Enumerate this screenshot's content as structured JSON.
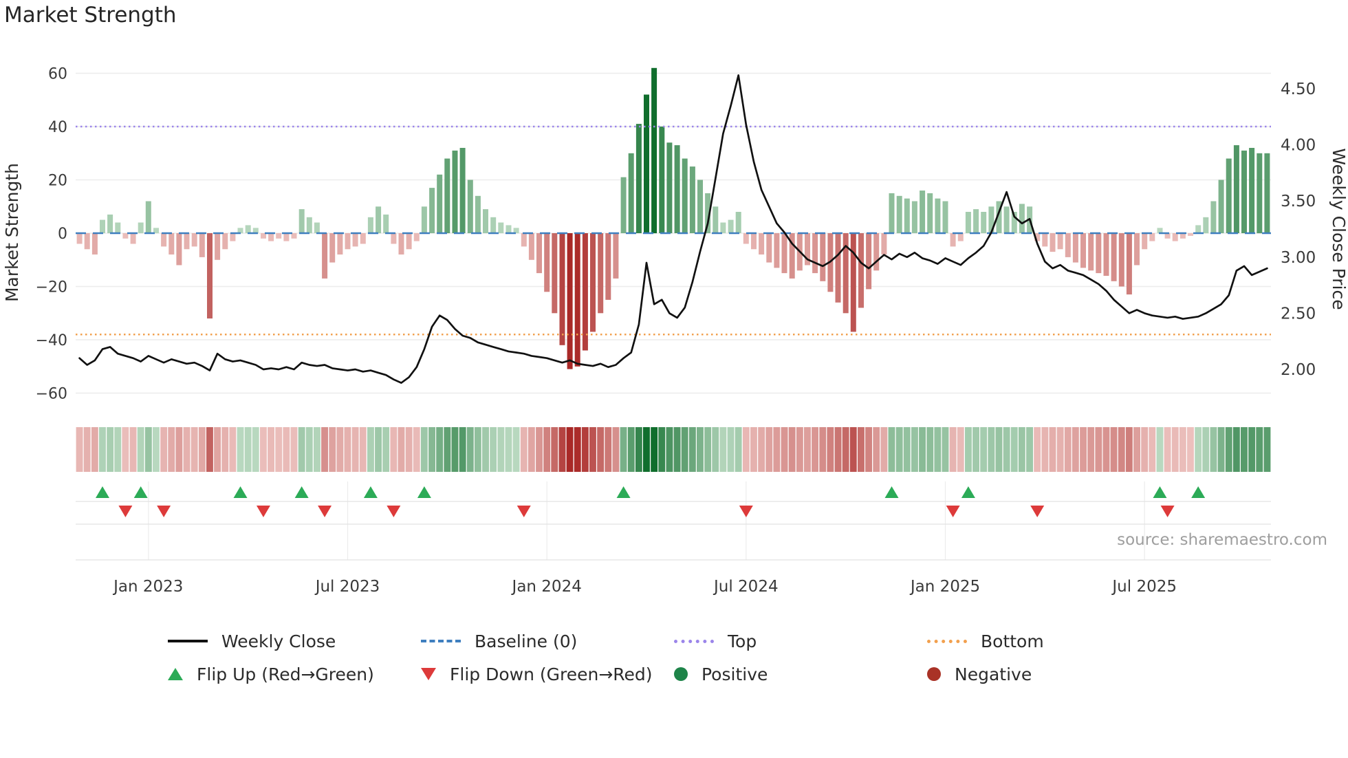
{
  "title": "Market Strength",
  "source": "source: sharemaestro.com",
  "axes": {
    "left_label": "Market Strength",
    "right_label": "Weekly Close Price",
    "left_ticks": [
      {
        "label": "60",
        "value": 60
      },
      {
        "label": "40",
        "value": 40
      },
      {
        "label": "20",
        "value": 20
      },
      {
        "label": "0",
        "value": 0
      },
      {
        "label": "−20",
        "value": -20
      },
      {
        "label": "−40",
        "value": -40
      },
      {
        "label": "−60",
        "value": -60
      }
    ],
    "right_ticks": [
      {
        "label": "4.50",
        "value": 4.5
      },
      {
        "label": "4.00",
        "value": 4.0
      },
      {
        "label": "3.50",
        "value": 3.5
      },
      {
        "label": "3.00",
        "value": 3.0
      },
      {
        "label": "2.50",
        "value": 2.5
      },
      {
        "label": "2.00",
        "value": 2.0
      }
    ],
    "x_ticks": [
      {
        "label": "Jan 2023",
        "index": 9
      },
      {
        "label": "Jul 2023",
        "index": 35
      },
      {
        "label": "Jan 2024",
        "index": 61
      },
      {
        "label": "Jul 2024",
        "index": 87
      },
      {
        "label": "Jan 2025",
        "index": 113
      },
      {
        "label": "Jul 2025",
        "index": 139
      }
    ]
  },
  "legend": {
    "row1": [
      {
        "name": "weekly-close",
        "label": "Weekly Close",
        "color": "#111111",
        "style": "solid-line"
      },
      {
        "name": "baseline",
        "label": "Baseline (0)",
        "color": "#3f7fbf",
        "style": "dashed-line"
      },
      {
        "name": "top",
        "label": "Top",
        "color": "#9b85ea",
        "style": "dotted-line"
      },
      {
        "name": "bottom",
        "label": "Bottom",
        "color": "#f2a04e",
        "style": "dotted-line"
      }
    ],
    "row2": [
      {
        "name": "flip-up",
        "label": "Flip Up (Red→Green)",
        "color": "#2cab57",
        "style": "triangle-up"
      },
      {
        "name": "flip-down",
        "label": "Flip Down (Green→Red)",
        "color": "#dd3a3a",
        "style": "triangle-down"
      },
      {
        "name": "positive",
        "label": "Positive",
        "color": "#1e8449",
        "style": "circle"
      },
      {
        "name": "negative",
        "label": "Negative",
        "color": "#a93226",
        "style": "circle"
      }
    ]
  },
  "chart_data": {
    "type": "bar+line",
    "title": "Market Strength",
    "start_date": "2022-11-04",
    "frequency": "weekly",
    "left_ylim": [
      -65,
      65
    ],
    "right_ylim": [
      1.8,
      4.75
    ],
    "baseline_level": 0,
    "top_level": 40,
    "bottom_level": -38,
    "strength": [
      -4,
      -6,
      -8,
      5,
      7,
      4,
      -2,
      -4,
      4,
      12,
      2,
      -5,
      -8,
      -12,
      -6,
      -5,
      -9,
      -32,
      -10,
      -6,
      -3,
      2,
      3,
      2,
      -2,
      -3,
      -2,
      -3,
      -2,
      9,
      6,
      4,
      -17,
      -11,
      -8,
      -6,
      -5,
      -4,
      6,
      10,
      7,
      -4,
      -8,
      -6,
      -3,
      10,
      17,
      22,
      28,
      31,
      32,
      20,
      14,
      9,
      6,
      4,
      3,
      2,
      -5,
      -10,
      -15,
      -22,
      -30,
      -42,
      -51,
      -50,
      -44,
      -37,
      -30,
      -25,
      -17,
      21,
      30,
      41,
      52,
      62,
      40,
      34,
      33,
      28,
      25,
      20,
      15,
      10,
      4,
      5,
      8,
      -4,
      -6,
      -8,
      -11,
      -13,
      -15,
      -17,
      -14,
      -12,
      -15,
      -18,
      -22,
      -26,
      -30,
      -37,
      -28,
      -21,
      -14,
      -8,
      15,
      14,
      13,
      12,
      16,
      15,
      13,
      12,
      -5,
      -3,
      8,
      9,
      8,
      10,
      12,
      10,
      8,
      11,
      10,
      -3,
      -5,
      -7,
      -6,
      -9,
      -11,
      -13,
      -14,
      -15,
      -16,
      -18,
      -20,
      -23,
      -12,
      -6,
      -3,
      2,
      -2,
      -3,
      -2,
      -1,
      3,
      6,
      12,
      20,
      28,
      33,
      31,
      32,
      30,
      30
    ],
    "price": [
      2.1,
      2.04,
      2.08,
      2.18,
      2.2,
      2.14,
      2.12,
      2.1,
      2.07,
      2.12,
      2.09,
      2.06,
      2.09,
      2.07,
      2.05,
      2.06,
      2.03,
      1.99,
      2.14,
      2.09,
      2.07,
      2.08,
      2.06,
      2.04,
      2.0,
      2.01,
      2.0,
      2.02,
      2.0,
      2.06,
      2.04,
      2.03,
      2.04,
      2.01,
      2.0,
      1.99,
      2.0,
      1.98,
      1.99,
      1.97,
      1.95,
      1.91,
      1.88,
      1.93,
      2.02,
      2.18,
      2.38,
      2.48,
      2.44,
      2.36,
      2.3,
      2.28,
      2.24,
      2.22,
      2.2,
      2.18,
      2.16,
      2.15,
      2.14,
      2.12,
      2.11,
      2.1,
      2.08,
      2.06,
      2.08,
      2.05,
      2.04,
      2.03,
      2.05,
      2.02,
      2.04,
      2.1,
      2.15,
      2.4,
      2.95,
      2.58,
      2.62,
      2.5,
      2.46,
      2.55,
      2.78,
      3.05,
      3.3,
      3.7,
      4.1,
      4.35,
      4.62,
      4.18,
      3.85,
      3.6,
      3.45,
      3.3,
      3.22,
      3.12,
      3.05,
      2.98,
      2.95,
      2.92,
      2.96,
      3.02,
      3.1,
      3.04,
      2.95,
      2.9,
      2.96,
      3.02,
      2.98,
      3.03,
      3.0,
      3.04,
      2.99,
      2.97,
      2.94,
      2.99,
      2.96,
      2.93,
      2.99,
      3.04,
      3.1,
      3.22,
      3.4,
      3.58,
      3.36,
      3.3,
      3.34,
      3.12,
      2.96,
      2.9,
      2.93,
      2.88,
      2.86,
      2.84,
      2.8,
      2.76,
      2.7,
      2.62,
      2.56,
      2.5,
      2.53,
      2.5,
      2.48,
      2.47,
      2.46,
      2.47,
      2.45,
      2.46,
      2.47,
      2.5,
      2.54,
      2.58,
      2.66,
      2.88,
      2.92,
      2.84,
      2.87,
      2.9
    ],
    "flip_up_indices": [
      3,
      8,
      21,
      29,
      38,
      45,
      71,
      106,
      116,
      141,
      146
    ],
    "flip_down_indices": [
      6,
      11,
      24,
      32,
      41,
      58,
      87,
      114,
      125,
      142
    ],
    "colors": {
      "price_line": "#111111",
      "baseline": "#3f7fbf",
      "top": "#9b85ea",
      "bottom": "#f2a04e",
      "flip_up": "#2cab57",
      "flip_down": "#dd3a3a",
      "positive_dark": "#106e2d",
      "negative_dark": "#a82624"
    }
  }
}
